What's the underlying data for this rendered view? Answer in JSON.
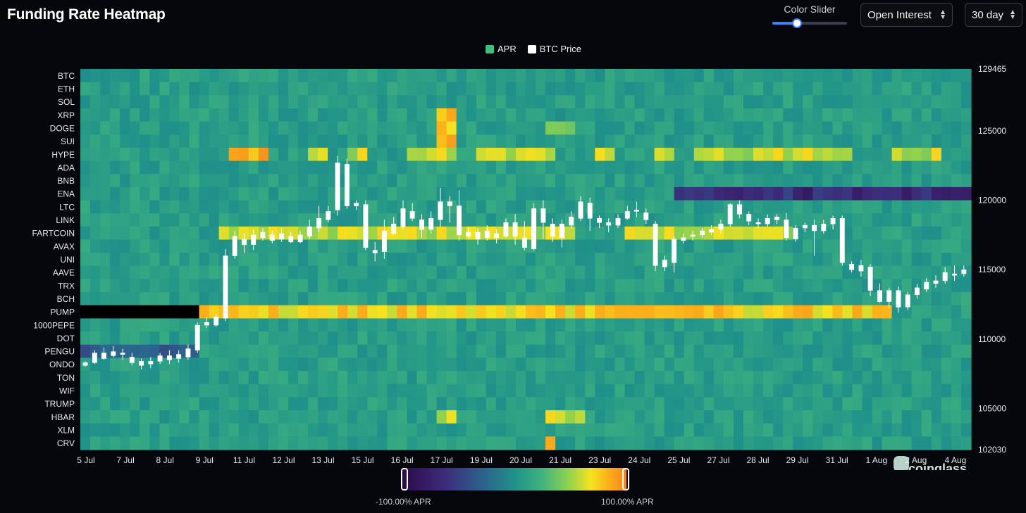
{
  "header": {
    "title": "Funding Rate Heatmap"
  },
  "controls": {
    "color_slider_label": "Color Slider",
    "color_slider_value": 0.33,
    "metric_select": "Open Interest",
    "range_select": "30 day"
  },
  "legend": [
    {
      "label": "APR",
      "color": "#3cc07a"
    },
    {
      "label": "BTC Price",
      "color": "#ffffff"
    }
  ],
  "colorbar": {
    "min_label": "-100.00% APR",
    "max_label": "100.00% APR"
  },
  "watermark": "coinglass",
  "chart_data": {
    "type": "heatmap",
    "title": "Funding Rate Heatmap",
    "rows": [
      "BTC",
      "ETH",
      "SOL",
      "XRP",
      "DOGE",
      "SUI",
      "HYPE",
      "ADA",
      "BNB",
      "ENA",
      "LTC",
      "LINK",
      "FARTCOIN",
      "AVAX",
      "UNI",
      "AAVE",
      "TRX",
      "BCH",
      "PUMP",
      "1000PEPE",
      "DOT",
      "PENGU",
      "ONDO",
      "TON",
      "WIF",
      "TRUMP",
      "HBAR",
      "XLM",
      "CRV"
    ],
    "x_tick_labels": [
      "5 Jul",
      "7 Jul",
      "8 Jul",
      "9 Jul",
      "11 Jul",
      "12 Jul",
      "13 Jul",
      "15 Jul",
      "16 Jul",
      "17 Jul",
      "19 Jul",
      "20 Jul",
      "21 Jul",
      "23 Jul",
      "24 Jul",
      "25 Jul",
      "27 Jul",
      "28 Jul",
      "29 Jul",
      "31 Jul",
      "1 Aug",
      "2 Aug",
      "4 Aug"
    ],
    "y_right_tick_labels": [
      "129465",
      "125000",
      "120000",
      "115000",
      "110000",
      "105000",
      "102030"
    ],
    "y_right_range": [
      102030,
      129465
    ],
    "color_scale": {
      "min": -100,
      "max": 100,
      "unit": "% APR"
    },
    "highlights_apr": [
      {
        "row": "XRP",
        "cols": [
          36,
          37
        ],
        "apr": 70
      },
      {
        "row": "DOGE",
        "cols": [
          36,
          37
        ],
        "apr": 65
      },
      {
        "row": "DOGE",
        "cols": [
          47,
          48,
          49
        ],
        "apr": 45
      },
      {
        "row": "SUI",
        "cols": [
          36,
          37
        ],
        "apr": 75
      },
      {
        "row": "HYPE",
        "cols": [
          15,
          16,
          17,
          18
        ],
        "apr": 85
      },
      {
        "row": "HYPE",
        "cols": [
          23,
          24,
          27,
          28,
          33,
          34,
          35,
          36,
          37,
          40,
          41,
          42,
          43,
          44,
          45,
          46,
          47,
          52,
          53,
          58,
          59,
          62,
          63,
          64,
          65,
          66,
          67,
          68,
          69,
          70,
          71,
          72,
          73,
          74,
          75,
          76,
          77,
          82,
          83,
          84,
          85,
          86
        ],
        "apr": 55
      },
      {
        "row": "ENA",
        "cols": [
          60,
          61,
          62,
          63,
          64,
          65,
          66,
          67,
          68,
          69,
          70,
          71,
          72,
          73,
          74,
          75,
          76,
          77,
          78,
          79,
          80,
          81,
          82,
          83,
          84,
          85,
          86,
          87,
          88,
          89,
          90
        ],
        "apr": -70
      },
      {
        "row": "FARTCOIN",
        "cols": [
          14,
          15,
          16,
          17,
          18,
          19,
          20,
          21,
          22,
          23,
          24,
          25,
          26,
          27,
          28,
          29,
          30,
          31,
          32,
          33,
          34,
          35,
          36,
          37,
          38,
          39,
          40,
          41,
          42,
          43,
          44,
          45,
          46,
          47,
          48,
          49,
          55,
          56,
          57,
          58,
          59,
          60,
          61,
          62,
          63,
          64,
          65,
          66,
          67,
          68,
          69,
          70,
          71
        ],
        "apr": 55
      },
      {
        "row": "PUMP",
        "cols": [
          0,
          1,
          2,
          3,
          4,
          5,
          6,
          7,
          8,
          9,
          10,
          11
        ],
        "apr": null
      },
      {
        "row": "PUMP",
        "cols": [
          12,
          13,
          14,
          15,
          16,
          17,
          18,
          19,
          20,
          21,
          22,
          23,
          24,
          25,
          26,
          27,
          28,
          29,
          30,
          31,
          32,
          33,
          34,
          35,
          36,
          37,
          38,
          39,
          40,
          41,
          42,
          43,
          44,
          45,
          46,
          47,
          48,
          49,
          50,
          51,
          52,
          53,
          54,
          55,
          56,
          57,
          58,
          59,
          60,
          61,
          62,
          63,
          64,
          65,
          66,
          67,
          68,
          69,
          70,
          71,
          72,
          73,
          74,
          75,
          76,
          77,
          78,
          79,
          80,
          81
        ],
        "apr": 70
      },
      {
        "row": "PENGU",
        "cols": [
          0,
          1,
          2,
          3,
          4,
          5,
          6,
          7,
          8,
          9,
          10,
          11
        ],
        "apr": -40
      },
      {
        "row": "HBAR",
        "cols": [
          36,
          37,
          47,
          48,
          49,
          50
        ],
        "apr": 60
      },
      {
        "row": "CRV",
        "cols": [
          47
        ],
        "apr": 80
      }
    ],
    "btc_price_series_name": "BTC Price",
    "btc_candles": [
      [
        108100,
        108300,
        108000,
        108400
      ],
      [
        108300,
        109000,
        108200,
        109200
      ],
      [
        108600,
        109000,
        108500,
        109400
      ],
      [
        108800,
        109100,
        108700,
        109500
      ],
      [
        109000,
        108900,
        108500,
        109300
      ],
      [
        108700,
        108300,
        108100,
        109000
      ],
      [
        108400,
        108100,
        107800,
        108600
      ],
      [
        108200,
        108400,
        107900,
        108700
      ],
      [
        108400,
        108800,
        108200,
        109000
      ],
      [
        108800,
        108500,
        108200,
        109200
      ],
      [
        108600,
        108900,
        108300,
        109200
      ],
      [
        108700,
        109300,
        108500,
        109600
      ],
      [
        109200,
        111000,
        109000,
        111200
      ],
      [
        111000,
        111200,
        110800,
        111600
      ],
      [
        111000,
        111600,
        110900,
        111800
      ],
      [
        111500,
        116000,
        111300,
        116500
      ],
      [
        116000,
        117400,
        115800,
        117800
      ],
      [
        117200,
        116800,
        116200,
        117600
      ],
      [
        116800,
        117500,
        116400,
        117900
      ],
      [
        117300,
        117700,
        117100,
        118000
      ],
      [
        117500,
        117100,
        116900,
        117800
      ],
      [
        117200,
        117600,
        117000,
        118000
      ],
      [
        117400,
        117000,
        116900,
        117700
      ],
      [
        117000,
        117500,
        116900,
        117800
      ],
      [
        117400,
        118100,
        117200,
        118600
      ],
      [
        118000,
        118700,
        117700,
        119600
      ],
      [
        118600,
        119200,
        118400,
        119600
      ],
      [
        119300,
        122700,
        118900,
        123200
      ],
      [
        122600,
        119600,
        119400,
        123000
      ],
      [
        119600,
        119800,
        119300,
        120000
      ],
      [
        119700,
        116600,
        116400,
        120000
      ],
      [
        116400,
        116200,
        115600,
        117000
      ],
      [
        116300,
        117800,
        115800,
        118600
      ],
      [
        117600,
        118300,
        117500,
        118800
      ],
      [
        118100,
        119400,
        117900,
        120000
      ],
      [
        119200,
        118700,
        118500,
        119800
      ],
      [
        118600,
        117900,
        117300,
        119000
      ],
      [
        117900,
        118700,
        117600,
        119200
      ],
      [
        118600,
        119900,
        118100,
        120900
      ],
      [
        119900,
        119600,
        118400,
        120300
      ],
      [
        119600,
        117500,
        117100,
        120700
      ],
      [
        117400,
        117700,
        117300,
        118000
      ],
      [
        117700,
        117200,
        116800,
        118000
      ],
      [
        117300,
        117800,
        117100,
        118200
      ],
      [
        117600,
        117300,
        116900,
        117900
      ],
      [
        117400,
        118400,
        117300,
        118700
      ],
      [
        118400,
        117400,
        116800,
        119000
      ],
      [
        117300,
        116600,
        116400,
        118500
      ],
      [
        116500,
        119400,
        116400,
        119800
      ],
      [
        119400,
        118400,
        117200,
        120000
      ],
      [
        118300,
        117400,
        117000,
        118700
      ],
      [
        117300,
        118300,
        116600,
        118600
      ],
      [
        118200,
        118800,
        117900,
        119200
      ],
      [
        118700,
        119900,
        118500,
        120300
      ],
      [
        119800,
        118700,
        117800,
        120200
      ],
      [
        118700,
        118400,
        118000,
        118900
      ],
      [
        118400,
        118200,
        117700,
        118700
      ],
      [
        118200,
        118700,
        118000,
        119000
      ],
      [
        118700,
        119200,
        118600,
        119600
      ],
      [
        119200,
        119300,
        118800,
        119900
      ],
      [
        119100,
        118600,
        118300,
        119400
      ],
      [
        118300,
        115300,
        114900,
        118500
      ],
      [
        115200,
        115700,
        114900,
        116000
      ],
      [
        115500,
        117200,
        114800,
        117400
      ],
      [
        117100,
        117300,
        116900,
        117600
      ],
      [
        117400,
        117500,
        117100,
        117800
      ],
      [
        117500,
        117800,
        117300,
        118000
      ],
      [
        117700,
        117900,
        117500,
        118200
      ],
      [
        117900,
        118300,
        117600,
        118600
      ],
      [
        118300,
        119700,
        118100,
        119800
      ],
      [
        119700,
        119000,
        118700,
        120000
      ],
      [
        119000,
        118500,
        118200,
        119200
      ],
      [
        118400,
        118300,
        118000,
        118700
      ],
      [
        118300,
        118700,
        118100,
        119000
      ],
      [
        118800,
        118600,
        118300,
        119000
      ],
      [
        118600,
        117300,
        117100,
        119100
      ],
      [
        117200,
        118000,
        117000,
        118200
      ],
      [
        118000,
        118200,
        117700,
        118400
      ],
      [
        118200,
        117800,
        116000,
        118600
      ],
      [
        117800,
        118300,
        117600,
        118600
      ],
      [
        118300,
        118700,
        117900,
        118900
      ],
      [
        118700,
        115500,
        115300,
        118900
      ],
      [
        115400,
        115000,
        114800,
        115600
      ],
      [
        114900,
        115300,
        114500,
        115700
      ],
      [
        115200,
        113500,
        113100,
        115400
      ],
      [
        113500,
        112700,
        112600,
        114000
      ],
      [
        112700,
        113500,
        112200,
        113700
      ],
      [
        113500,
        112300,
        111900,
        113800
      ],
      [
        112300,
        113200,
        112100,
        113400
      ],
      [
        113200,
        113700,
        112900,
        114000
      ],
      [
        113600,
        114100,
        113400,
        114400
      ],
      [
        114000,
        114200,
        113700,
        114600
      ],
      [
        114200,
        114800,
        114000,
        115200
      ],
      [
        114700,
        114600,
        114200,
        115300
      ],
      [
        114700,
        115000,
        114500,
        115300
      ]
    ]
  }
}
